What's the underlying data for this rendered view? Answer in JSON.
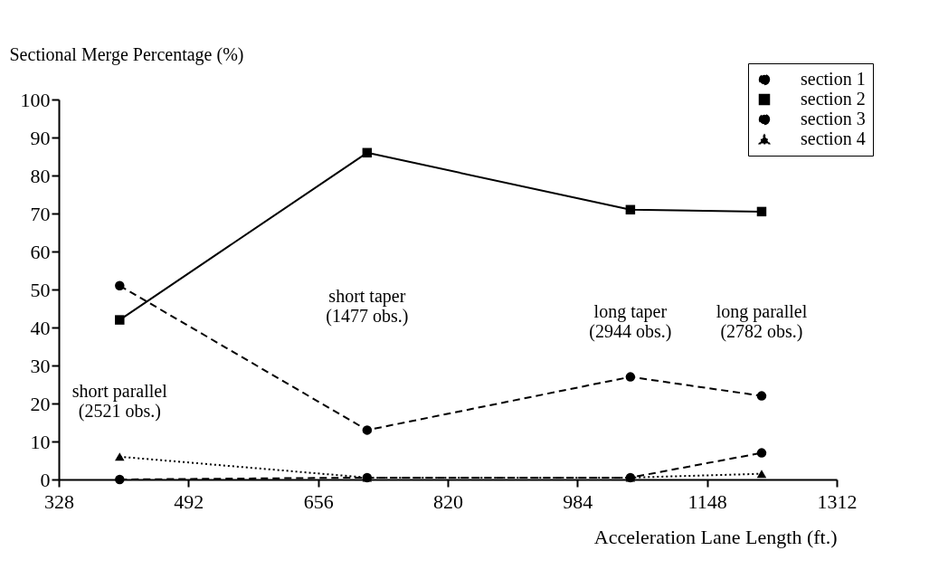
{
  "chart_data": {
    "type": "line",
    "xlabel": "Acceleration Lane Length (ft.)",
    "ylabel": "Sectional Merge Percentage (%)",
    "x": [
      405,
      718,
      1051,
      1217
    ],
    "series": [
      {
        "name": "section 1",
        "color": "#000000",
        "values": [
          0,
          0.5,
          0.5,
          7
        ],
        "marker": "circle",
        "line_style": "dashed"
      },
      {
        "name": "section 2",
        "color": "#000000",
        "values": [
          42,
          86,
          71,
          70.5
        ],
        "marker": "square",
        "line_style": "solid"
      },
      {
        "name": "section 3",
        "color": "#000000",
        "values": [
          51,
          13,
          27,
          22
        ],
        "marker": "circle",
        "line_style": "dashed"
      },
      {
        "name": "section 4",
        "color": "#000000",
        "values": [
          6,
          0.5,
          0.5,
          1.5
        ],
        "marker": "triangle",
        "line_style": "dotted"
      }
    ],
    "xlim": [
      328,
      1312
    ],
    "xticks": [
      328,
      492,
      656,
      820,
      984,
      1148,
      1312
    ],
    "ylim": [
      0,
      100
    ],
    "yticks": [
      0,
      10,
      20,
      30,
      40,
      50,
      60,
      70,
      80,
      90,
      100
    ],
    "annotations": [
      "short parallel\n(2521 obs.)",
      "short taper\n(1477 obs.)",
      "long taper\n(2944 obs.)",
      "long parallel\n(2782 obs.)"
    ],
    "grid": false,
    "legend": "top right"
  }
}
